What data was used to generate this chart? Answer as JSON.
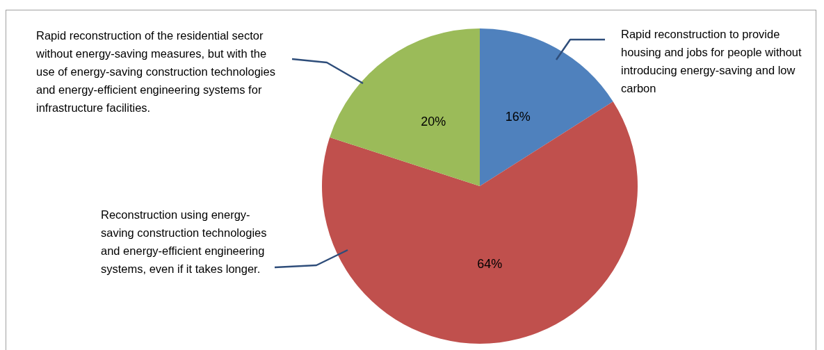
{
  "chart_data": {
    "type": "pie",
    "categories": [
      "Rapid reconstruction to provide housing and jobs for people without introducing energy-saving and low carbon",
      "Reconstruction using energy-saving construction technologies and energy-efficient engineering systems, even if it takes longer.",
      "Rapid reconstruction of the residential sector without energy-saving measures, but with the use of energy-saving construction technologies and energy-efficient engineering systems for infrastructure facilities."
    ],
    "values": [
      16,
      64,
      20
    ],
    "colors": [
      "#4f81bd",
      "#c0504d",
      "#9bbb59"
    ],
    "value_labels": [
      "16%",
      "64%",
      "20%"
    ],
    "legend": false
  }
}
